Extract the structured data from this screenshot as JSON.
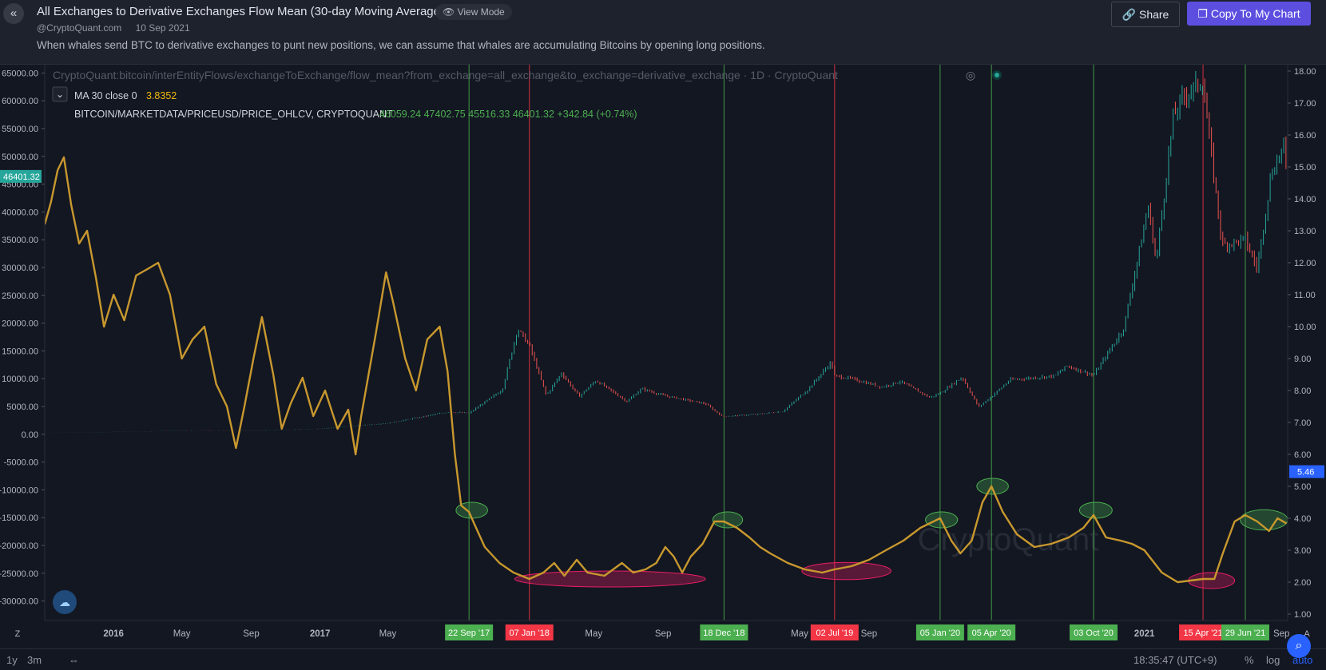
{
  "header": {
    "back_icon": "chevron-double-left-icon",
    "title": "All Exchanges to Derivative Exchanges Flow Mean (30-day Moving Average)",
    "view_mode_label": "View Mode",
    "author": "@CryptoQuant.com",
    "date": "10 Sep 2021",
    "description": "When whales send BTC to derivative exchanges to punt new positions, we can assume that whales are accumulating Bitcoins by opening long positions.",
    "share_label": "Share",
    "copy_label": "Copy To My Chart"
  },
  "legend": {
    "source": "CryptoQuant:bitcoin/interEntityFlows/exchangeToExchange/flow_mean?from_exchange=all_exchange&to_exchange=derivative_exchange · 1D · CryptoQuant",
    "ma_label": "MA 30 close 0",
    "ma_value": "3.8352",
    "price_label": "BITCOIN/MARKETDATA/PRICEUSD/PRICE_OHLCV, CRYPTOQUANT",
    "price_ohlc": "46059.24 47402.75 45516.33 46401.32 +342.84 (+0.74%)"
  },
  "watermark": "CryptoQuant",
  "footer": {
    "range_1y": "1y",
    "range_3m": "3m",
    "time": "18:35:47 (UTC+9)",
    "percent": "%",
    "log": "log",
    "auto": "auto",
    "z_label": "Z",
    "a_label": "A"
  },
  "colors": {
    "flow_line": "#c8982e",
    "up": "#26a69a",
    "down": "#ef5350",
    "green_marker": "#4caf50",
    "red_marker": "#f23645",
    "accent": "#2962ff"
  },
  "chart_data": {
    "type": "line",
    "x_axis": {
      "range": [
        "2015-09-01",
        "2021-09-12"
      ],
      "tick_labels": [
        {
          "date": "2016-01-01",
          "label": "2016",
          "bold": true
        },
        {
          "date": "2016-05-01",
          "label": "May"
        },
        {
          "date": "2016-09-01",
          "label": "Sep"
        },
        {
          "date": "2017-01-01",
          "label": "2017",
          "bold": true
        },
        {
          "date": "2017-05-01",
          "label": "May"
        },
        {
          "date": "2018-05-01",
          "label": "May"
        },
        {
          "date": "2018-09-01",
          "label": "Sep"
        },
        {
          "date": "2019-05-01",
          "label": "May"
        },
        {
          "date": "2019-09-01",
          "label": "Sep"
        },
        {
          "date": "2021-01-01",
          "label": "2021",
          "bold": true
        },
        {
          "date": "2021-09-01",
          "label": "Sep"
        }
      ]
    },
    "y_left": {
      "range": [
        -33500,
        66500
      ],
      "ticks": [
        65000,
        60000,
        55000,
        50000,
        45000,
        40000,
        35000,
        30000,
        25000,
        20000,
        15000,
        10000,
        5000,
        0,
        -5000,
        -10000,
        -15000,
        -20000,
        -25000,
        -30000
      ],
      "tick_labels": [
        "65000.00",
        "60000.00",
        "55000.00",
        "50000.00",
        "45000.00",
        "40000.00",
        "35000.00",
        "30000.00",
        "25000.00",
        "20000.00",
        "15000.00",
        "10000.00",
        "5000.00",
        "0.00",
        "-5000.00",
        "-10000.00",
        "-15000.00",
        "-20000.00",
        "-25000.00",
        "-30000.00"
      ],
      "last_value_label": "46401.32",
      "last_value": 46401.32
    },
    "y_right": {
      "range": [
        0.8,
        18.2
      ],
      "ticks": [
        18,
        17,
        16,
        15,
        14,
        13,
        12,
        11,
        10,
        9,
        8,
        7,
        6,
        5,
        4,
        3,
        2,
        1
      ],
      "tick_labels": [
        "18.00",
        "17.00",
        "16.00",
        "15.00",
        "14.00",
        "13.00",
        "12.00",
        "11.00",
        "10.00",
        "9.00",
        "8.00",
        "7.00",
        "6.00",
        "5.00",
        "4.00",
        "3.00",
        "2.00",
        "1.00"
      ],
      "last_value_label": "5.46",
      "last_value": 5.46
    },
    "series": [
      {
        "axis": "left",
        "type": "candles",
        "points": [
          [
            "2015-09-01",
            230
          ],
          [
            "2016-01-01",
            430
          ],
          [
            "2016-06-01",
            700
          ],
          [
            "2016-09-01",
            600
          ],
          [
            "2017-01-01",
            1000
          ],
          [
            "2017-05-01",
            2000
          ],
          [
            "2017-08-15",
            4000
          ],
          [
            "2017-09-22",
            3800
          ],
          [
            "2017-11-20",
            8000
          ],
          [
            "2017-12-17",
            19000
          ],
          [
            "2018-01-07",
            16000
          ],
          [
            "2018-02-06",
            7000
          ],
          [
            "2018-03-05",
            11000
          ],
          [
            "2018-04-05",
            6800
          ],
          [
            "2018-05-05",
            9700
          ],
          [
            "2018-06-29",
            5900
          ],
          [
            "2018-07-25",
            8200
          ],
          [
            "2018-09-01",
            7000
          ],
          [
            "2018-11-15",
            5500
          ],
          [
            "2018-12-15",
            3200
          ],
          [
            "2019-02-15",
            3600
          ],
          [
            "2019-04-01",
            4100
          ],
          [
            "2019-05-15",
            8000
          ],
          [
            "2019-06-26",
            13000
          ],
          [
            "2019-07-02",
            10500
          ],
          [
            "2019-08-01",
            10000
          ],
          [
            "2019-09-24",
            8500
          ],
          [
            "2019-10-26",
            9500
          ],
          [
            "2019-12-18",
            6600
          ],
          [
            "2020-01-05",
            7400
          ],
          [
            "2020-02-13",
            10300
          ],
          [
            "2020-03-13",
            4900
          ],
          [
            "2020-04-05",
            6800
          ],
          [
            "2020-05-08",
            9800
          ],
          [
            "2020-07-26",
            10500
          ],
          [
            "2020-08-17",
            12300
          ],
          [
            "2020-10-03",
            10600
          ],
          [
            "2020-11-25",
            19000
          ],
          [
            "2021-01-08",
            41000
          ],
          [
            "2021-01-22",
            31000
          ],
          [
            "2021-02-21",
            57000
          ],
          [
            "2021-03-13",
            61000
          ],
          [
            "2021-04-14",
            63500
          ],
          [
            "2021-05-19",
            34000
          ],
          [
            "2021-06-29",
            35000
          ],
          [
            "2021-07-20",
            29800
          ],
          [
            "2021-08-14",
            47000
          ],
          [
            "2021-09-06",
            52000
          ],
          [
            "2021-09-10",
            46401
          ]
        ]
      },
      {
        "axis": "right",
        "type": "line",
        "name": "MA 30 close 0",
        "points": [
          [
            "2015-09-01",
            13.2
          ],
          [
            "2015-09-12",
            13.9
          ],
          [
            "2015-09-24",
            14.9
          ],
          [
            "2015-10-05",
            15.3
          ],
          [
            "2015-10-18",
            13.8
          ],
          [
            "2015-11-01",
            12.6
          ],
          [
            "2015-11-15",
            13.0
          ],
          [
            "2015-12-01",
            11.5
          ],
          [
            "2015-12-15",
            10.0
          ],
          [
            "2016-01-01",
            11.0
          ],
          [
            "2016-01-20",
            10.2
          ],
          [
            "2016-02-10",
            11.6
          ],
          [
            "2016-03-01",
            11.8
          ],
          [
            "2016-03-20",
            12.0
          ],
          [
            "2016-04-10",
            11.0
          ],
          [
            "2016-05-01",
            9.0
          ],
          [
            "2016-05-20",
            9.6
          ],
          [
            "2016-06-10",
            10.0
          ],
          [
            "2016-07-01",
            8.2
          ],
          [
            "2016-07-20",
            7.5
          ],
          [
            "2016-08-05",
            6.2
          ],
          [
            "2016-08-20",
            7.5
          ],
          [
            "2016-09-05",
            9.0
          ],
          [
            "2016-09-20",
            10.3
          ],
          [
            "2016-10-10",
            8.5
          ],
          [
            "2016-10-25",
            6.8
          ],
          [
            "2016-11-10",
            7.6
          ],
          [
            "2016-12-01",
            8.4
          ],
          [
            "2016-12-20",
            7.2
          ],
          [
            "2017-01-10",
            8.0
          ],
          [
            "2017-02-01",
            6.8
          ],
          [
            "2017-02-20",
            7.4
          ],
          [
            "2017-03-05",
            6.0
          ],
          [
            "2017-03-15",
            7.2
          ],
          [
            "2017-04-10",
            9.8
          ],
          [
            "2017-04-28",
            11.7
          ],
          [
            "2017-05-10",
            10.8
          ],
          [
            "2017-06-01",
            9.0
          ],
          [
            "2017-06-20",
            8.0
          ],
          [
            "2017-07-10",
            9.6
          ],
          [
            "2017-08-01",
            10.0
          ],
          [
            "2017-08-15",
            8.6
          ],
          [
            "2017-08-28",
            6.0
          ],
          [
            "2017-09-08",
            4.4
          ],
          [
            "2017-09-22",
            4.2
          ],
          [
            "2017-10-02",
            3.8
          ],
          [
            "2017-10-20",
            3.1
          ],
          [
            "2017-11-15",
            2.6
          ],
          [
            "2017-12-10",
            2.3
          ],
          [
            "2018-01-07",
            2.1
          ],
          [
            "2018-02-01",
            2.3
          ],
          [
            "2018-02-20",
            2.6
          ],
          [
            "2018-03-10",
            2.2
          ],
          [
            "2018-04-01",
            2.7
          ],
          [
            "2018-04-20",
            2.3
          ],
          [
            "2018-05-20",
            2.2
          ],
          [
            "2018-06-20",
            2.6
          ],
          [
            "2018-07-10",
            2.3
          ],
          [
            "2018-08-01",
            2.4
          ],
          [
            "2018-08-20",
            2.6
          ],
          [
            "2018-09-05",
            3.1
          ],
          [
            "2018-09-20",
            2.8
          ],
          [
            "2018-10-05",
            2.3
          ],
          [
            "2018-10-20",
            2.8
          ],
          [
            "2018-11-10",
            3.2
          ],
          [
            "2018-12-01",
            3.9
          ],
          [
            "2018-12-18",
            3.9
          ],
          [
            "2019-01-10",
            3.7
          ],
          [
            "2019-02-01",
            3.4
          ],
          [
            "2019-02-20",
            3.1
          ],
          [
            "2019-03-10",
            2.9
          ],
          [
            "2019-04-10",
            2.6
          ],
          [
            "2019-05-10",
            2.4
          ],
          [
            "2019-06-10",
            2.3
          ],
          [
            "2019-07-02",
            2.4
          ],
          [
            "2019-08-01",
            2.5
          ],
          [
            "2019-09-01",
            2.7
          ],
          [
            "2019-10-01",
            3.0
          ],
          [
            "2019-11-01",
            3.3
          ],
          [
            "2019-12-01",
            3.7
          ],
          [
            "2020-01-05",
            4.0
          ],
          [
            "2020-01-25",
            3.3
          ],
          [
            "2020-02-10",
            2.9
          ],
          [
            "2020-03-01",
            3.3
          ],
          [
            "2020-03-20",
            4.5
          ],
          [
            "2020-04-05",
            5.0
          ],
          [
            "2020-04-25",
            4.2
          ],
          [
            "2020-05-20",
            3.5
          ],
          [
            "2020-06-20",
            3.1
          ],
          [
            "2020-07-20",
            3.2
          ],
          [
            "2020-08-20",
            3.4
          ],
          [
            "2020-09-15",
            3.7
          ],
          [
            "2020-10-03",
            4.1
          ],
          [
            "2020-10-25",
            3.4
          ],
          [
            "2020-11-20",
            3.3
          ],
          [
            "2020-12-10",
            3.2
          ],
          [
            "2021-01-01",
            3.0
          ],
          [
            "2021-02-01",
            2.3
          ],
          [
            "2021-03-01",
            2.0
          ],
          [
            "2021-04-15",
            2.1
          ],
          [
            "2021-05-05",
            2.1
          ],
          [
            "2021-05-20",
            2.9
          ],
          [
            "2021-06-10",
            3.9
          ],
          [
            "2021-06-29",
            4.1
          ],
          [
            "2021-07-20",
            3.9
          ],
          [
            "2021-08-10",
            3.6
          ],
          [
            "2021-08-25",
            4.0
          ],
          [
            "2021-09-10",
            3.84
          ]
        ]
      }
    ],
    "annotations": {
      "vlines": [
        {
          "date": "2017-09-22",
          "label": "22 Sep '17",
          "color": "green"
        },
        {
          "date": "2018-01-07",
          "label": "07 Jan '18",
          "color": "red"
        },
        {
          "date": "2018-12-18",
          "label": "18 Dec '18",
          "color": "green"
        },
        {
          "date": "2019-07-02",
          "label": "02 Jul '19",
          "color": "red"
        },
        {
          "date": "2020-01-05",
          "label": "05 Jan '20",
          "color": "green"
        },
        {
          "date": "2020-04-05",
          "label": "05 Apr '20",
          "color": "green"
        },
        {
          "date": "2020-10-03",
          "label": "03 Oct '20",
          "color": "green"
        },
        {
          "date": "2021-04-15",
          "label": "15 Apr '21",
          "color": "red"
        },
        {
          "date": "2021-06-29",
          "label": "29 Jun '21",
          "color": "green"
        }
      ],
      "ellipses": [
        {
          "color": "green",
          "start": "2017-08-30",
          "end": "2017-10-25",
          "center": 4.25,
          "half_height": 0.25
        },
        {
          "color": "red",
          "start": "2017-12-12",
          "end": "2018-11-15",
          "center": 2.1,
          "half_height": 0.25
        },
        {
          "color": "green",
          "start": "2018-11-28",
          "end": "2019-01-20",
          "center": 3.95,
          "half_height": 0.25
        },
        {
          "color": "red",
          "start": "2019-05-05",
          "end": "2019-10-10",
          "center": 2.35,
          "half_height": 0.27
        },
        {
          "color": "green",
          "start": "2019-12-10",
          "end": "2020-02-05",
          "center": 3.95,
          "half_height": 0.25
        },
        {
          "color": "green",
          "start": "2020-03-10",
          "end": "2020-05-05",
          "center": 5.0,
          "half_height": 0.25
        },
        {
          "color": "green",
          "start": "2020-09-08",
          "end": "2020-11-05",
          "center": 4.25,
          "half_height": 0.25
        },
        {
          "color": "red",
          "start": "2021-03-20",
          "end": "2021-06-10",
          "center": 2.05,
          "half_height": 0.25
        },
        {
          "color": "green",
          "start": "2021-06-20",
          "end": "2021-09-12",
          "center": 3.95,
          "half_height": 0.32
        }
      ]
    }
  }
}
